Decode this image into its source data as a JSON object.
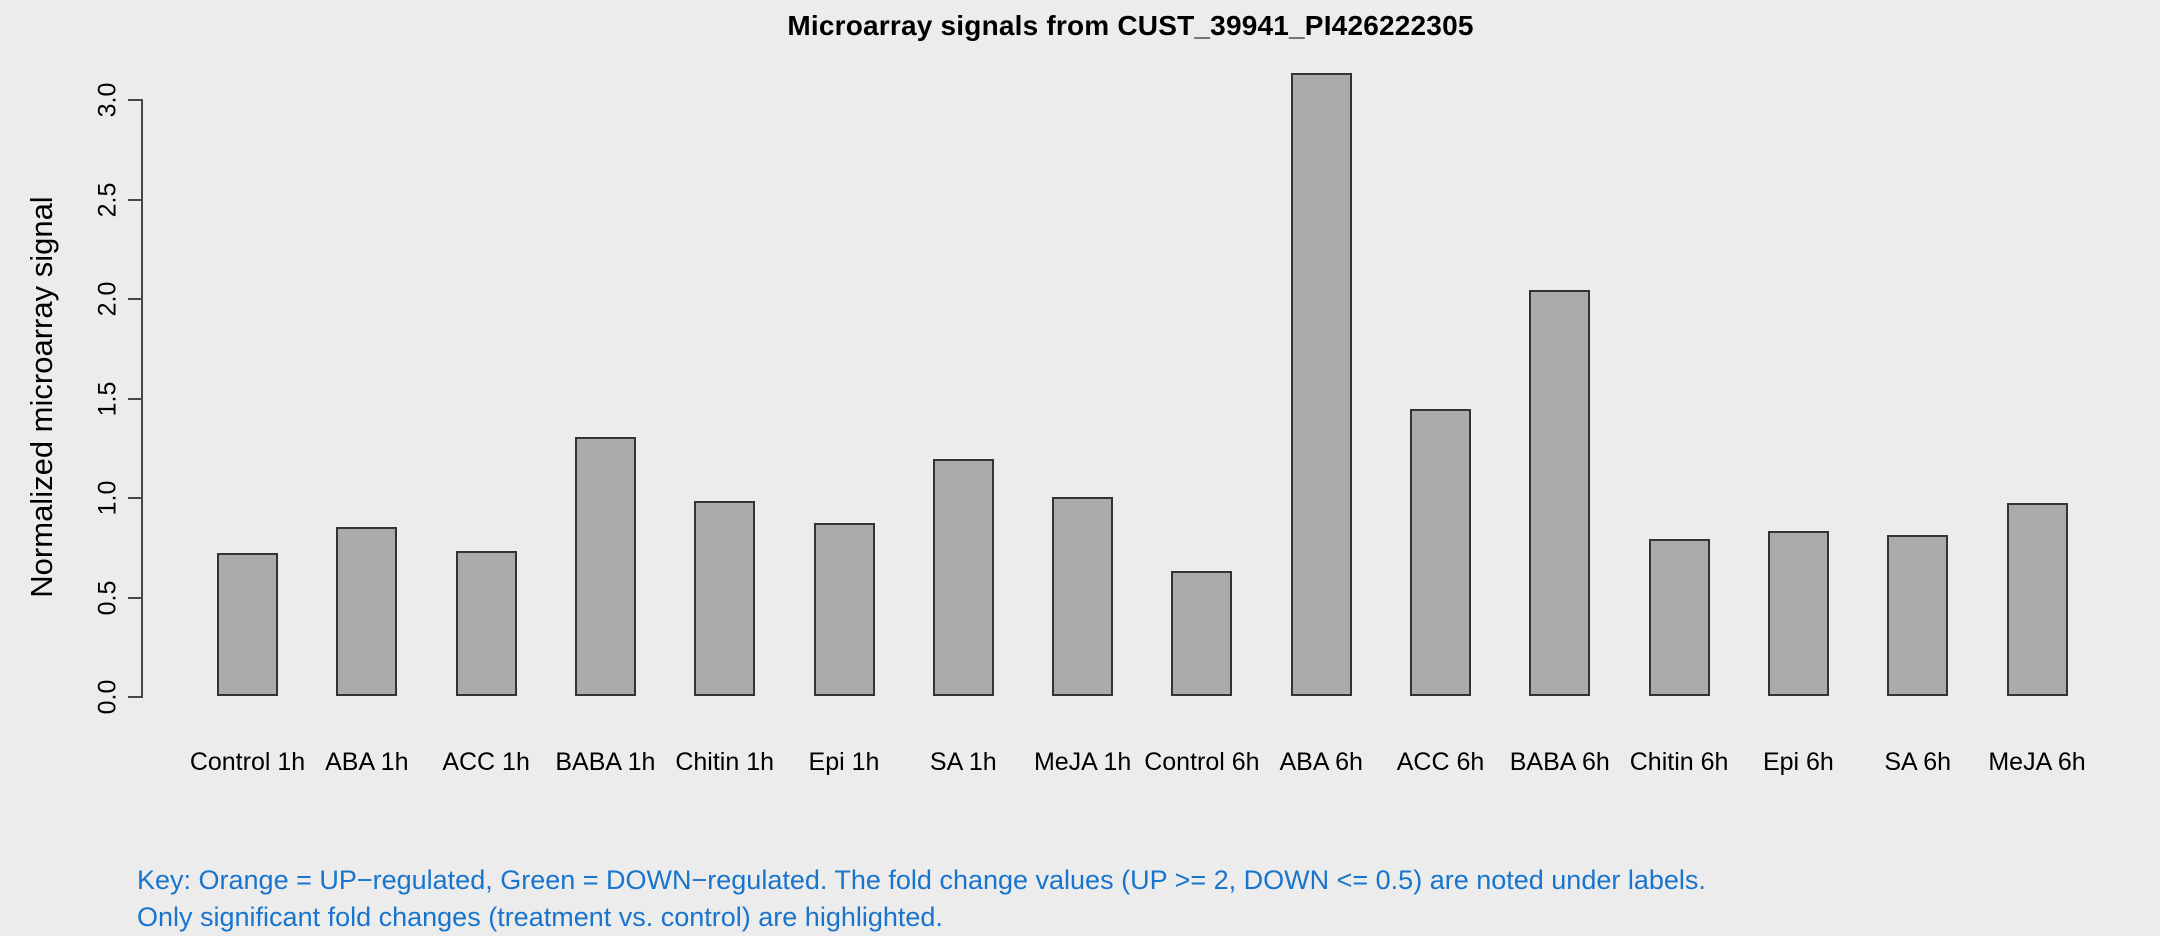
{
  "chart_data": {
    "type": "bar",
    "title": "Microarray signals from CUST_39941_PI426222305",
    "xlabel": "",
    "ylabel": "Normalized microarray signal",
    "ylim": [
      0,
      3.0
    ],
    "yticks": [
      0.0,
      0.5,
      1.0,
      1.5,
      2.0,
      2.5,
      3.0
    ],
    "grid": false,
    "legend_position": "none",
    "categories": [
      "Control 1h",
      "ABA 1h",
      "ACC 1h",
      "BABA 1h",
      "Chitin 1h",
      "Epi 1h",
      "SA 1h",
      "MeJA 1h",
      "Control 6h",
      "ABA 6h",
      "ACC 6h",
      "BABA 6h",
      "Chitin 6h",
      "Epi 6h",
      "SA 6h",
      "MeJA 6h"
    ],
    "values": [
      0.72,
      0.85,
      0.73,
      1.3,
      0.98,
      0.87,
      1.19,
      1.0,
      0.63,
      3.13,
      1.44,
      2.04,
      0.79,
      0.83,
      0.81,
      0.97
    ],
    "colors": {
      "background": "#ECECEC",
      "bar_fill": "#ABABAB",
      "bar_border": "#333333",
      "axis": "#474747",
      "text": "#000000"
    }
  },
  "footnote": {
    "line1": "Key: Orange = UP−regulated, Green = DOWN−regulated. The fold change values (UP >= 2, DOWN <= 0.5) are noted under labels.",
    "line2": "Only significant fold changes (treatment vs. control) are highlighted.",
    "color": "#1874CD"
  }
}
